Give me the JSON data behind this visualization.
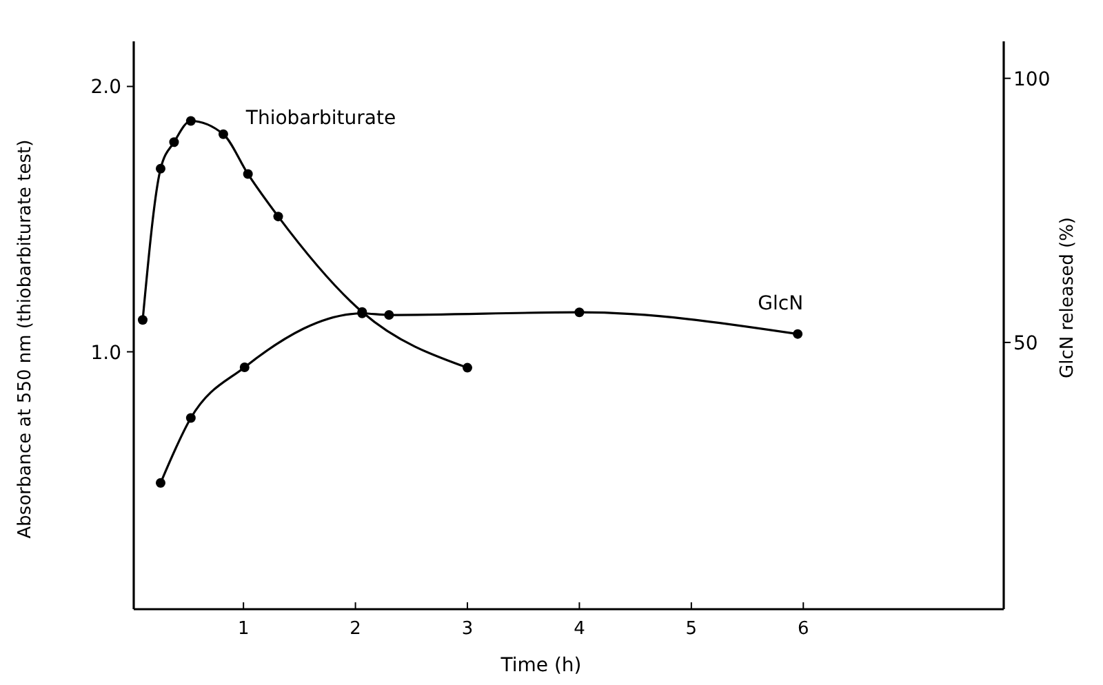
{
  "chart_data": {
    "type": "line",
    "xlabel": "Time (h)",
    "ylabel": "Absorbance at 550 nm (thiobarbiturate test)",
    "y2label": "GlcN released (%)",
    "xlim": [
      0.02,
      7.79
    ],
    "xticks": [
      1,
      2,
      3,
      4,
      5,
      6
    ],
    "ylim": [
      0.03,
      2.17
    ],
    "yticks": [
      {
        "value": 1,
        "label": "1.0"
      },
      {
        "value": 2,
        "label": "2.0"
      }
    ],
    "y2lim": [
      -0.5,
      107
    ],
    "y2ticks": [
      50,
      100
    ],
    "marker": "circle",
    "line_style": "solid",
    "grid": false,
    "legend": false,
    "series": [
      {
        "name": "Thiobarbiturate",
        "color": "#000000",
        "x": [
          0.1,
          0.26,
          0.38,
          0.53,
          0.82,
          1.04,
          1.31,
          2.06,
          3.0
        ],
        "values": [
          1.12,
          1.69,
          1.79,
          1.87,
          1.82,
          1.67,
          1.51,
          1.15,
          0.94
        ]
      },
      {
        "name": "GlcN",
        "color": "#000000",
        "axis": "y2",
        "x": [
          0.26,
          0.53,
          1.01,
          2.06,
          2.3,
          4.0,
          5.95
        ],
        "values": [
          23.4,
          35.7,
          45.3,
          55.5,
          55.2,
          55.7,
          51.6
        ]
      }
    ]
  }
}
